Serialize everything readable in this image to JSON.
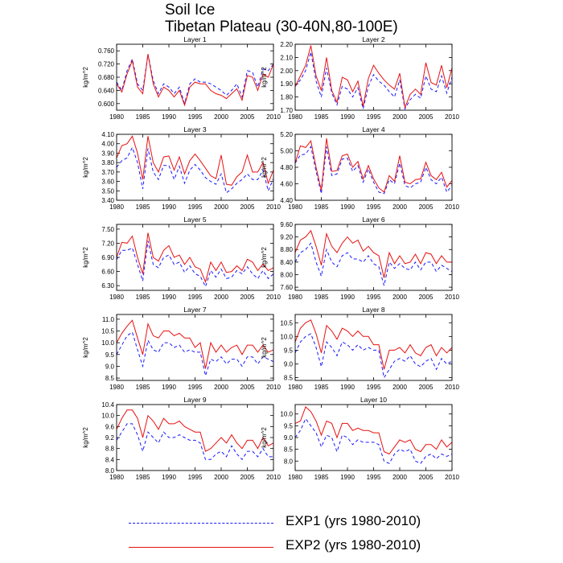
{
  "title": {
    "line1": "Soil Ice",
    "line2": "Tibetan Plateau (30-40N,80-100E)"
  },
  "colors": {
    "exp1": "#1a1aff",
    "exp2": "#e81010"
  },
  "chart_data": {
    "type": "line",
    "x_start": 1980,
    "x_end": 2010,
    "xlim": [
      1980,
      2010
    ],
    "xticks": [
      1980,
      1985,
      1990,
      1995,
      2000,
      2005,
      2010
    ],
    "xtick_labels": [
      "1980",
      "1985",
      "1990",
      "1995",
      "2000",
      "2005",
      "2010"
    ],
    "series_names": [
      "EXP1 (yrs 1980-2010)",
      "EXP2 (yrs 1980-2010)"
    ],
    "panels": [
      {
        "name": "Layer 1",
        "ylabel": "kg/m^2",
        "ylim": [
          0.58,
          0.78
        ],
        "yticks": [
          0.6,
          0.64,
          0.68,
          0.72,
          0.76
        ],
        "ytick_labels": [
          "0.600",
          "0.640",
          "0.680",
          "0.720",
          "0.760"
        ],
        "exp1": [
          0.665,
          0.64,
          0.7,
          0.735,
          0.66,
          0.64,
          0.75,
          0.67,
          0.63,
          0.66,
          0.65,
          0.63,
          0.65,
          0.6,
          0.66,
          0.675,
          0.665,
          0.665,
          0.66,
          0.65,
          0.64,
          0.625,
          0.64,
          0.66,
          0.62,
          0.7,
          0.695,
          0.65,
          0.705,
          0.7,
          0.72
        ],
        "exp2": [
          0.66,
          0.635,
          0.69,
          0.73,
          0.65,
          0.63,
          0.75,
          0.66,
          0.62,
          0.65,
          0.64,
          0.62,
          0.64,
          0.595,
          0.65,
          0.665,
          0.66,
          0.66,
          0.64,
          0.63,
          0.625,
          0.615,
          0.63,
          0.645,
          0.61,
          0.685,
          0.68,
          0.64,
          0.69,
          0.68,
          0.72
        ]
      },
      {
        "name": "Layer 2",
        "ylabel": "kg/m^2",
        "ylim": [
          1.7,
          2.2
        ],
        "yticks": [
          1.7,
          1.8,
          1.9,
          2.0,
          2.1,
          2.2
        ],
        "ytick_labels": [
          "1.70",
          "1.80",
          "1.90",
          "2.00",
          "2.10",
          "2.20"
        ],
        "exp1": [
          1.88,
          1.93,
          2.0,
          2.14,
          1.92,
          1.8,
          2.02,
          1.83,
          1.74,
          1.88,
          1.86,
          1.8,
          1.87,
          1.71,
          1.88,
          1.97,
          1.92,
          1.89,
          1.84,
          1.8,
          1.93,
          1.71,
          1.78,
          1.82,
          1.79,
          1.96,
          1.86,
          1.84,
          1.96,
          1.83,
          1.95
        ],
        "exp2": [
          1.88,
          1.96,
          2.04,
          2.19,
          1.96,
          1.85,
          2.1,
          1.85,
          1.76,
          1.95,
          1.93,
          1.84,
          1.92,
          1.73,
          1.94,
          2.04,
          1.98,
          1.93,
          1.89,
          1.86,
          1.98,
          1.72,
          1.82,
          1.86,
          1.82,
          2.06,
          1.91,
          1.89,
          2.04,
          1.87,
          2.02
        ]
      },
      {
        "name": "Layer 3",
        "ylabel": "kg/m^2",
        "ylim": [
          3.4,
          4.1
        ],
        "yticks": [
          3.4,
          3.5,
          3.6,
          3.7,
          3.8,
          3.9,
          4.0,
          4.1
        ],
        "ytick_labels": [
          "3.40",
          "3.50",
          "3.60",
          "3.70",
          "3.80",
          "3.90",
          "4.00",
          "4.10"
        ],
        "exp1": [
          3.75,
          3.82,
          3.85,
          3.96,
          3.8,
          3.52,
          3.95,
          3.7,
          3.62,
          3.77,
          3.77,
          3.62,
          3.76,
          3.58,
          3.72,
          3.78,
          3.72,
          3.64,
          3.6,
          3.57,
          3.68,
          3.48,
          3.52,
          3.58,
          3.62,
          3.68,
          3.62,
          3.62,
          3.72,
          3.5,
          3.63
        ],
        "exp2": [
          3.85,
          3.98,
          4.0,
          4.08,
          3.9,
          3.62,
          4.08,
          3.8,
          3.7,
          3.86,
          3.87,
          3.72,
          3.86,
          3.68,
          3.82,
          3.89,
          3.82,
          3.74,
          3.66,
          3.63,
          3.88,
          3.57,
          3.56,
          3.65,
          3.7,
          3.88,
          3.7,
          3.7,
          3.8,
          3.58,
          3.72
        ]
      },
      {
        "name": "Layer 4",
        "ylabel": "kg/m^2",
        "ylim": [
          4.4,
          5.2
        ],
        "yticks": [
          4.4,
          4.6,
          4.8,
          5.0,
          5.2
        ],
        "ytick_labels": [
          "4.40",
          "4.60",
          "4.80",
          "5.00",
          "5.20"
        ],
        "exp1": [
          4.85,
          4.95,
          4.96,
          5.05,
          4.75,
          4.48,
          5.05,
          4.7,
          4.72,
          4.9,
          4.91,
          4.75,
          4.82,
          4.62,
          4.78,
          4.62,
          4.5,
          4.48,
          4.65,
          4.6,
          4.85,
          4.58,
          4.55,
          4.6,
          4.62,
          4.8,
          4.65,
          4.6,
          4.68,
          4.5,
          4.58
        ],
        "exp2": [
          4.85,
          5.06,
          5.04,
          5.12,
          4.8,
          4.52,
          5.15,
          4.75,
          4.76,
          4.94,
          4.96,
          4.8,
          4.87,
          4.66,
          4.82,
          4.66,
          4.55,
          4.5,
          4.7,
          4.63,
          4.94,
          4.62,
          4.6,
          4.65,
          4.66,
          4.86,
          4.7,
          4.65,
          4.74,
          4.56,
          4.64
        ]
      },
      {
        "name": "Layer 5",
        "ylabel": "kg/m^2",
        "ylim": [
          6.2,
          7.6
        ],
        "yticks": [
          6.3,
          6.6,
          6.9,
          7.2,
          7.5
        ],
        "ytick_labels": [
          "6.30",
          "6.60",
          "6.90",
          "7.20",
          "7.50"
        ],
        "exp1": [
          6.85,
          7.05,
          7.05,
          7.1,
          6.75,
          6.4,
          7.25,
          6.75,
          6.68,
          6.9,
          6.95,
          6.75,
          6.8,
          6.58,
          6.72,
          6.55,
          6.5,
          6.28,
          6.62,
          6.48,
          6.65,
          6.45,
          6.48,
          6.62,
          6.55,
          6.7,
          6.55,
          6.45,
          6.62,
          6.45,
          6.55
        ],
        "exp2": [
          6.9,
          7.22,
          7.2,
          7.35,
          6.9,
          6.55,
          7.42,
          6.9,
          6.82,
          7.05,
          7.15,
          6.9,
          6.95,
          6.75,
          6.9,
          6.7,
          6.65,
          6.38,
          6.8,
          6.62,
          6.8,
          6.58,
          6.6,
          6.72,
          6.62,
          6.86,
          6.8,
          6.62,
          6.76,
          6.62,
          6.68
        ]
      },
      {
        "name": "Layer 6",
        "ylabel": "kg/m^2",
        "ylim": [
          7.5,
          9.6
        ],
        "yticks": [
          7.6,
          8.0,
          8.4,
          8.8,
          9.2,
          9.6
        ],
        "ytick_labels": [
          "7.60",
          "8.00",
          "8.40",
          "8.80",
          "9.20",
          "9.60"
        ],
        "exp1": [
          8.4,
          8.7,
          8.8,
          9.0,
          8.4,
          7.95,
          8.8,
          8.4,
          8.25,
          8.6,
          8.7,
          8.5,
          8.5,
          8.4,
          8.6,
          8.35,
          8.25,
          7.65,
          8.4,
          8.2,
          8.35,
          8.2,
          8.15,
          8.4,
          8.15,
          8.4,
          8.4,
          8.1,
          8.3,
          8.2,
          8.1
        ],
        "exp2": [
          8.7,
          9.1,
          9.2,
          9.4,
          8.9,
          8.3,
          9.3,
          8.9,
          8.7,
          9.0,
          9.2,
          9.0,
          9.1,
          8.75,
          8.9,
          8.7,
          8.6,
          7.9,
          8.7,
          8.35,
          8.6,
          8.35,
          8.4,
          8.65,
          8.35,
          8.7,
          8.65,
          8.35,
          8.6,
          8.4,
          8.4
        ]
      },
      {
        "name": "Layer 7",
        "ylabel": "kg/m^2",
        "ylim": [
          8.4,
          11.2
        ],
        "yticks": [
          8.5,
          9.0,
          9.5,
          10.0,
          10.5,
          11.0
        ],
        "ytick_labels": [
          "8.5",
          "9.0",
          "9.5",
          "10.0",
          "10.5",
          "11.0"
        ],
        "exp1": [
          9.5,
          9.9,
          10.3,
          10.45,
          9.7,
          9.0,
          10.1,
          9.7,
          9.6,
          10.0,
          10.0,
          9.8,
          9.9,
          9.6,
          9.7,
          9.6,
          9.6,
          8.6,
          9.3,
          9.2,
          9.4,
          9.1,
          9.3,
          9.3,
          9.0,
          9.4,
          9.4,
          9.1,
          9.4,
          9.3,
          9.2
        ],
        "exp2": [
          10.0,
          10.4,
          10.7,
          10.95,
          10.2,
          9.5,
          10.8,
          10.3,
          10.2,
          10.5,
          10.5,
          10.3,
          10.4,
          10.2,
          10.2,
          9.8,
          10.0,
          8.9,
          10.0,
          9.6,
          9.9,
          9.6,
          9.8,
          9.9,
          9.5,
          9.9,
          9.9,
          9.6,
          9.9,
          9.6,
          9.7
        ]
      },
      {
        "name": "Layer 8",
        "ylabel": "kg/m^2",
        "ylim": [
          8.4,
          10.8
        ],
        "yticks": [
          8.5,
          9.0,
          9.5,
          10.0,
          10.5
        ],
        "ytick_labels": [
          "8.5",
          "9.0",
          "9.5",
          "10.0",
          "10.5"
        ],
        "exp1": [
          9.4,
          9.8,
          10.0,
          10.1,
          9.6,
          8.9,
          9.8,
          9.6,
          9.3,
          9.8,
          9.7,
          9.5,
          9.7,
          9.5,
          9.6,
          9.5,
          9.5,
          8.5,
          8.8,
          9.1,
          9.2,
          9.1,
          9.3,
          9.0,
          8.9,
          9.1,
          9.2,
          8.8,
          9.2,
          9.0,
          9.1
        ],
        "exp2": [
          9.8,
          10.3,
          10.5,
          10.6,
          10.1,
          9.4,
          10.4,
          10.2,
          9.9,
          10.3,
          10.2,
          10.0,
          10.2,
          10.0,
          10.0,
          9.7,
          9.7,
          8.8,
          9.5,
          9.5,
          9.6,
          9.4,
          9.7,
          9.4,
          9.3,
          9.6,
          9.7,
          9.3,
          9.6,
          9.4,
          9.6
        ]
      },
      {
        "name": "Layer 9",
        "ylabel": "kg/m^2",
        "ylim": [
          8.0,
          10.4
        ],
        "yticks": [
          8.0,
          8.4,
          8.8,
          9.2,
          9.6,
          10.0,
          10.4
        ],
        "ytick_labels": [
          "8.0",
          "8.4",
          "8.8",
          "9.2",
          "9.6",
          "10.0",
          "10.4"
        ],
        "exp1": [
          9.1,
          9.4,
          9.7,
          9.7,
          9.3,
          8.7,
          9.4,
          9.2,
          9.0,
          9.4,
          9.2,
          9.2,
          9.3,
          9.2,
          9.1,
          9.1,
          9.0,
          8.4,
          8.4,
          8.6,
          8.7,
          8.5,
          8.9,
          8.6,
          8.4,
          8.7,
          8.7,
          8.5,
          8.8,
          8.5,
          8.5
        ],
        "exp2": [
          9.5,
          9.9,
          10.2,
          10.2,
          9.9,
          9.2,
          10.0,
          9.8,
          9.5,
          9.9,
          9.7,
          9.7,
          9.8,
          9.6,
          9.5,
          9.4,
          9.4,
          8.7,
          8.8,
          9.0,
          9.2,
          9.0,
          9.3,
          9.0,
          8.8,
          9.1,
          9.1,
          8.8,
          9.2,
          8.9,
          9.0
        ]
      },
      {
        "name": "Layer 10",
        "ylabel": "kg/m^2",
        "ylim": [
          7.6,
          10.4
        ],
        "yticks": [
          8.0,
          8.5,
          9.0,
          9.5,
          10.0
        ],
        "ytick_labels": [
          "8.0",
          "8.5",
          "9.0",
          "9.5",
          "10.0"
        ],
        "exp1": [
          9.0,
          9.3,
          9.8,
          9.5,
          9.2,
          8.6,
          9.1,
          9.0,
          8.4,
          9.1,
          9.0,
          8.7,
          8.9,
          8.8,
          8.8,
          8.8,
          8.7,
          8.0,
          7.9,
          8.3,
          8.5,
          8.4,
          8.5,
          8.0,
          7.9,
          8.2,
          8.3,
          8.1,
          8.3,
          8.2,
          8.3
        ],
        "exp2": [
          9.6,
          9.7,
          10.3,
          10.1,
          9.7,
          9.1,
          9.7,
          9.6,
          9.0,
          9.6,
          9.6,
          9.3,
          9.4,
          9.3,
          9.3,
          9.2,
          9.2,
          8.4,
          8.3,
          8.6,
          8.9,
          8.8,
          8.9,
          8.5,
          8.4,
          8.7,
          8.7,
          8.5,
          8.9,
          8.6,
          8.8
        ]
      }
    ]
  }
}
